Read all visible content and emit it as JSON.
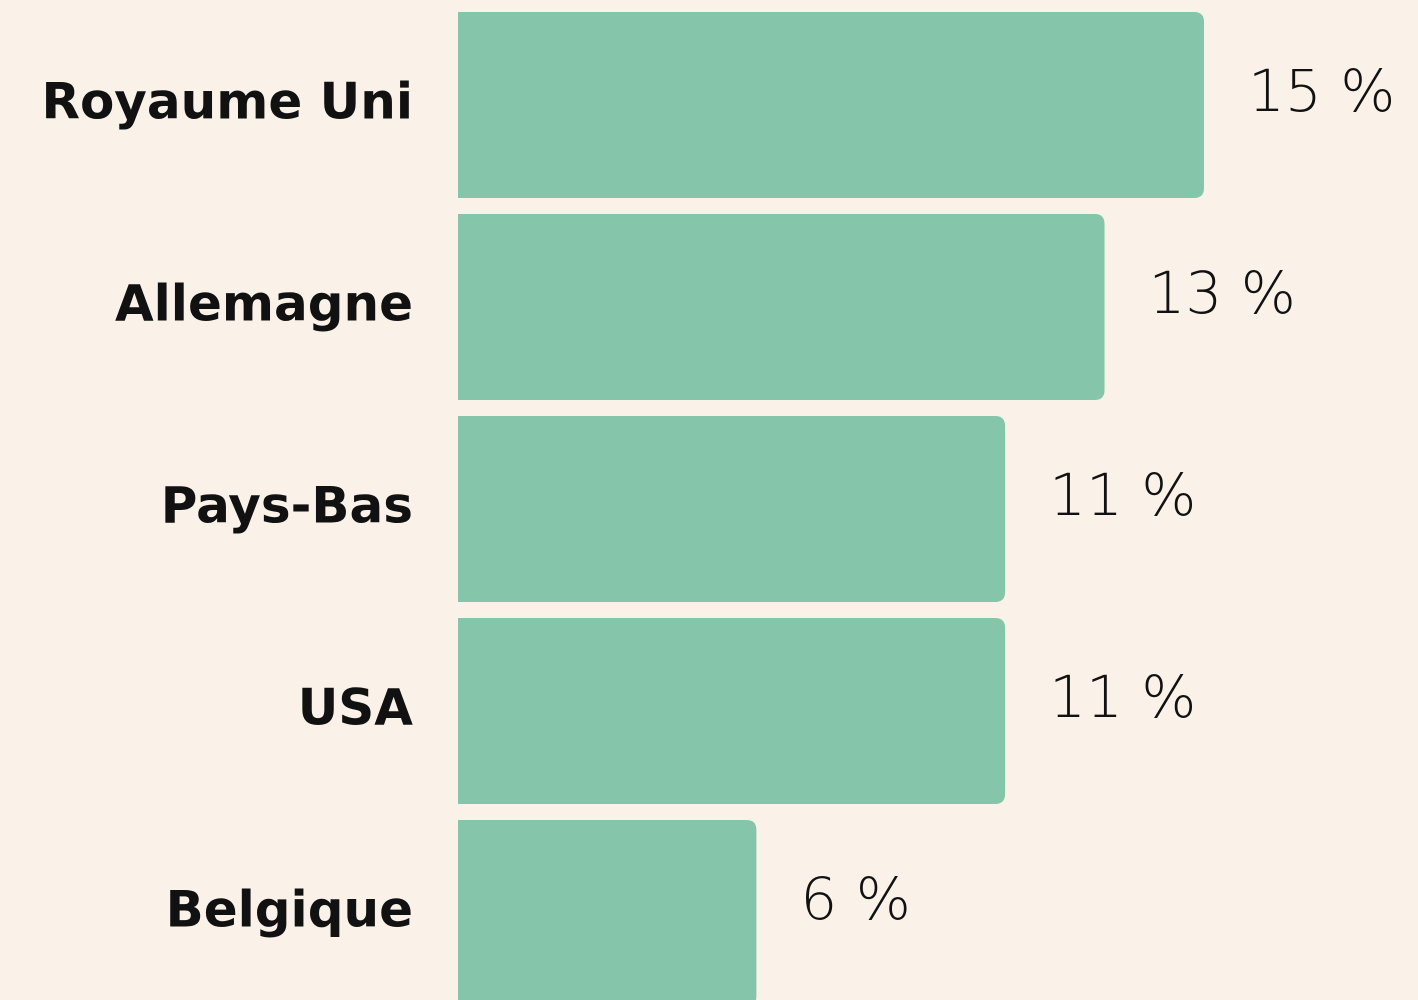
{
  "chart_data": {
    "type": "bar",
    "orientation": "horizontal",
    "categories": [
      "Royaume Uni",
      "Allemagne",
      "Pays-Bas",
      "USA",
      "Belgique"
    ],
    "values": [
      15,
      13,
      11,
      11,
      6
    ],
    "value_labels": [
      "15 %",
      "13 %",
      "11 %",
      "11 %",
      "6 %"
    ],
    "color": "#85c5a9"
  }
}
